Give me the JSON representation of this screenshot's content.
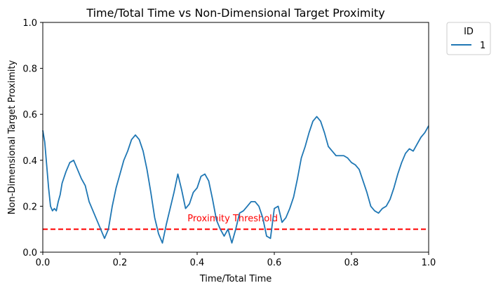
{
  "chart_data": {
    "type": "line",
    "title": "Time/Total Time vs Non-Dimensional Target Proximity",
    "xlabel": "Time/Total Time",
    "ylabel": "Non-Dimensional Target Proximity",
    "xlim": [
      0.0,
      1.0
    ],
    "ylim": [
      0.0,
      1.0
    ],
    "xticks": [
      "0.0",
      "0.2",
      "0.4",
      "0.6",
      "0.8",
      "1.0"
    ],
    "yticks": [
      "0.0",
      "0.2",
      "0.4",
      "0.6",
      "0.8",
      "1.0"
    ],
    "grid": false,
    "legend": {
      "title": "ID",
      "placement": "outside-top-right",
      "entries": [
        "1"
      ]
    },
    "series": [
      {
        "name": "1",
        "color": "#1f77b4",
        "x": [
          0.0,
          0.005,
          0.01,
          0.015,
          0.02,
          0.025,
          0.03,
          0.035,
          0.04,
          0.045,
          0.05,
          0.06,
          0.07,
          0.08,
          0.09,
          0.1,
          0.11,
          0.12,
          0.13,
          0.14,
          0.15,
          0.16,
          0.17,
          0.18,
          0.19,
          0.2,
          0.21,
          0.22,
          0.23,
          0.24,
          0.25,
          0.26,
          0.27,
          0.28,
          0.29,
          0.3,
          0.31,
          0.32,
          0.33,
          0.34,
          0.35,
          0.36,
          0.37,
          0.38,
          0.39,
          0.4,
          0.41,
          0.42,
          0.43,
          0.44,
          0.45,
          0.46,
          0.47,
          0.48,
          0.49,
          0.5,
          0.51,
          0.52,
          0.53,
          0.54,
          0.55,
          0.56,
          0.57,
          0.58,
          0.59,
          0.6,
          0.61,
          0.62,
          0.63,
          0.64,
          0.65,
          0.66,
          0.67,
          0.68,
          0.69,
          0.7,
          0.71,
          0.72,
          0.73,
          0.74,
          0.75,
          0.76,
          0.77,
          0.78,
          0.79,
          0.8,
          0.81,
          0.82,
          0.83,
          0.84,
          0.85,
          0.86,
          0.87,
          0.88,
          0.89,
          0.9,
          0.91,
          0.92,
          0.93,
          0.94,
          0.95,
          0.96,
          0.97,
          0.98,
          0.99,
          1.0
        ],
        "y": [
          0.53,
          0.48,
          0.38,
          0.28,
          0.2,
          0.18,
          0.19,
          0.18,
          0.22,
          0.25,
          0.3,
          0.35,
          0.39,
          0.4,
          0.36,
          0.32,
          0.29,
          0.22,
          0.18,
          0.14,
          0.1,
          0.06,
          0.1,
          0.2,
          0.28,
          0.34,
          0.4,
          0.44,
          0.49,
          0.51,
          0.49,
          0.44,
          0.36,
          0.26,
          0.15,
          0.08,
          0.04,
          0.12,
          0.19,
          0.26,
          0.34,
          0.27,
          0.19,
          0.21,
          0.26,
          0.28,
          0.33,
          0.34,
          0.31,
          0.23,
          0.14,
          0.1,
          0.07,
          0.1,
          0.04,
          0.1,
          0.17,
          0.18,
          0.2,
          0.22,
          0.22,
          0.2,
          0.15,
          0.07,
          0.06,
          0.19,
          0.2,
          0.13,
          0.15,
          0.19,
          0.24,
          0.32,
          0.41,
          0.46,
          0.52,
          0.57,
          0.59,
          0.57,
          0.52,
          0.46,
          0.44,
          0.42,
          0.42,
          0.42,
          0.41,
          0.39,
          0.38,
          0.36,
          0.31,
          0.26,
          0.2,
          0.18,
          0.17,
          0.19,
          0.2,
          0.23,
          0.28,
          0.34,
          0.39,
          0.43,
          0.45,
          0.44,
          0.47,
          0.5,
          0.52,
          0.55
        ]
      }
    ],
    "reference_line": {
      "y": 0.1,
      "color": "#ff0000",
      "style": "dashed",
      "label": "Proximity Threshold",
      "label_x": 0.375
    }
  }
}
